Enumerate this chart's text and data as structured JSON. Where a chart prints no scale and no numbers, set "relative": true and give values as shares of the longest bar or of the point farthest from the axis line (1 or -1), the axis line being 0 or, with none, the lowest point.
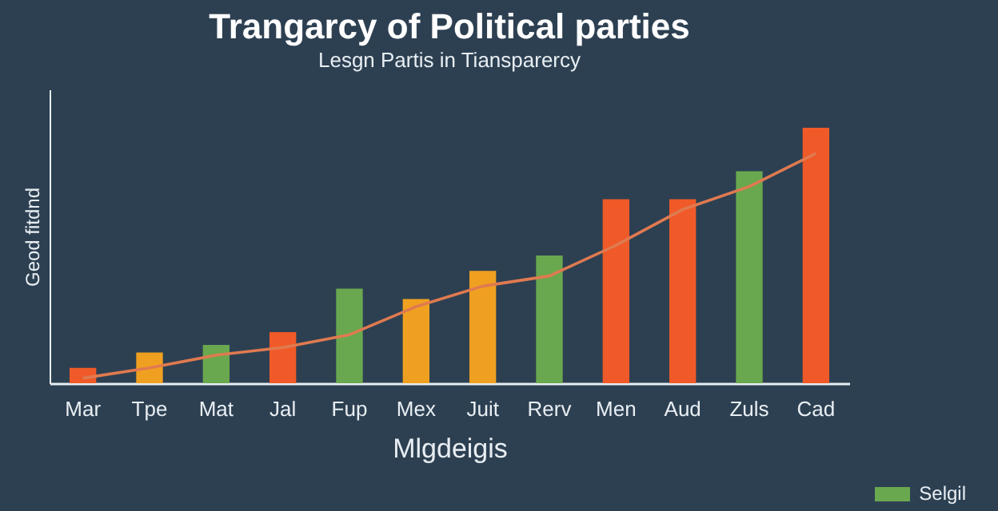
{
  "chart_data": {
    "type": "bar",
    "title": "Trangarcy of Political parties",
    "subtitle": "Lesgn Partis in Tiansparercy",
    "xlabel": "Mlgdeigis",
    "ylabel": "Geod fitdnd",
    "categories": [
      "Mar",
      "Tpe",
      "Mat",
      "Jal",
      "Fup",
      "Mex",
      "Juit",
      "Rerv",
      "Men",
      "Aud",
      "Zuls",
      "Cad"
    ],
    "relative": true,
    "series": [
      {
        "name": "Selgil",
        "color": "#6aa84f",
        "colors": [
          "#f05a28",
          "#f0a020",
          "#6aa84f",
          "#f05a28",
          "#6aa84f",
          "#f0a020",
          "#f0a020",
          "#6aa84f",
          "#f05a28",
          "#f05a28",
          "#6aa84f",
          "#f05a28"
        ],
        "values": [
          0.06,
          0.12,
          0.15,
          0.2,
          0.37,
          0.33,
          0.44,
          0.5,
          0.72,
          0.72,
          0.83,
          1
        ]
      },
      {
        "type": "line",
        "color": "#e07a50",
        "values": [
          0.02,
          0.06,
          0.11,
          0.14,
          0.19,
          0.3,
          0.38,
          0.42,
          0.54,
          0.68,
          0.77,
          0.9
        ]
      }
    ],
    "legend": "bottom right"
  }
}
